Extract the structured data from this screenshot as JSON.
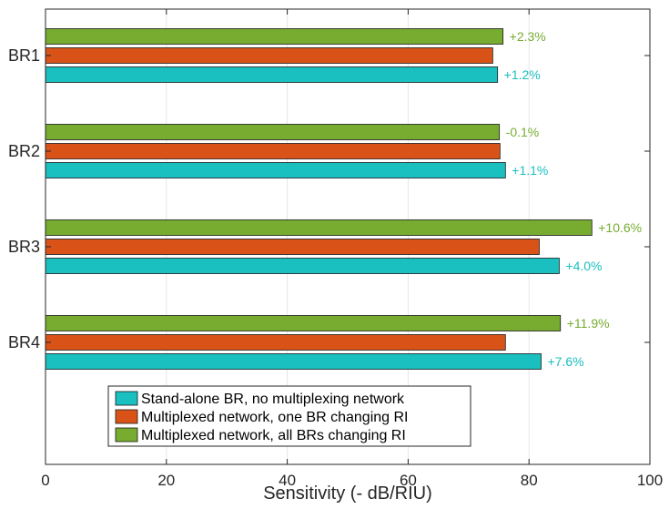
{
  "chart_data": {
    "type": "bar",
    "orientation": "horizontal",
    "title": "",
    "xlabel": "Sensitivity (- dB/RIU)",
    "ylabel": "",
    "xlim": [
      0,
      100
    ],
    "xticks": [
      0,
      20,
      40,
      60,
      80,
      100
    ],
    "grid": "vertical",
    "categories": [
      "BR1",
      "BR2",
      "BR3",
      "BR4"
    ],
    "series": [
      {
        "name": "Multiplexed network, all BRs changing RI",
        "color": "#77ac30",
        "values": [
          75.7,
          75.1,
          90.4,
          85.2
        ],
        "labels": [
          "+2.3%",
          "-0.1%",
          "+10.6%",
          "+11.9%"
        ],
        "label_color": "#77ac30"
      },
      {
        "name": "Multiplexed network, one BR changing RI",
        "color": "#d95319",
        "values": [
          74.0,
          75.2,
          81.7,
          76.1
        ],
        "labels": [
          "",
          "",
          "",
          ""
        ],
        "label_color": "#d95319"
      },
      {
        "name": "Stand-alone BR, no multiplexing network",
        "color": "#1abfc0",
        "values": [
          74.8,
          76.1,
          85.0,
          82.0
        ],
        "labels": [
          "+1.2%",
          "+1.1%",
          "+4.0%",
          "+7.6%"
        ],
        "label_color": "#1abfc0"
      }
    ],
    "legend": {
      "placement": "bottom-left",
      "entries": [
        {
          "label": "Stand-alone BR, no multiplexing network",
          "color": "#1abfc0"
        },
        {
          "label": "Multiplexed network, one BR changing RI",
          "color": "#d95319"
        },
        {
          "label": "Multiplexed network, all BRs changing RI",
          "color": "#77ac30"
        }
      ]
    }
  }
}
